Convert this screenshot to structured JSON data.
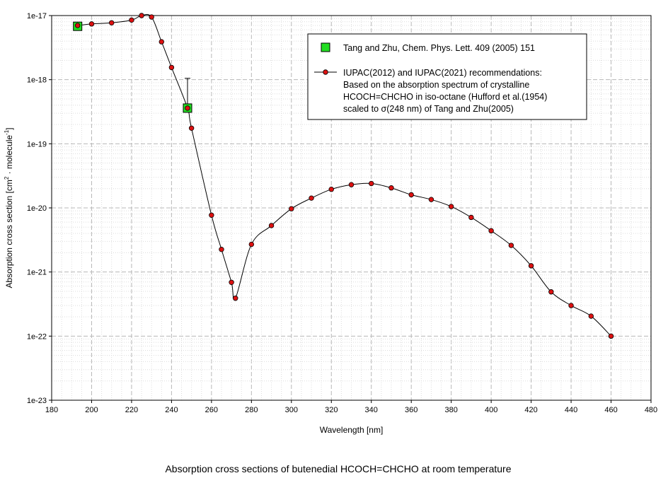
{
  "caption": "Absorption cross sections of butenedial HCOCH=CHCHO at room temperature",
  "chart_data": {
    "type": "scatter",
    "xlabel": "Wavelength [nm]",
    "ylabel": "Absorption cross section [cm² · molecule⁻¹]",
    "ylabel_parts": [
      "Absorption cross section [cm",
      "2",
      " · molecule",
      "-1",
      "]"
    ],
    "xlim": [
      180,
      480
    ],
    "ylim": [
      1e-23,
      1e-17
    ],
    "yscale": "log",
    "grid": true,
    "legend_position": "top-right",
    "x_ticks": [
      "180",
      "200",
      "220",
      "240",
      "260",
      "280",
      "300",
      "320",
      "340",
      "360",
      "380",
      "400",
      "420",
      "440",
      "460",
      "480"
    ],
    "y_ticks": [
      {
        "v": 1e-17,
        "label": "1e-17"
      },
      {
        "v": 1e-18,
        "label": "1e-18"
      },
      {
        "v": 1e-19,
        "label": "1e-19"
      },
      {
        "v": 1e-20,
        "label": "1e-20"
      },
      {
        "v": 1e-21,
        "label": "1e-21"
      },
      {
        "v": 1e-22,
        "label": "1e-22"
      },
      {
        "v": 1e-23,
        "label": "1e-23"
      }
    ],
    "series": [
      {
        "name": "Tang and Zhu, Chem. Phys. Lett. 409 (2005) 151",
        "marker": "square",
        "color": "#22dd22",
        "x": [
          193,
          248
        ],
        "y": [
          6.8e-18,
          3.6e-19
        ],
        "error_upper": [
          null,
          1.05e-18
        ]
      },
      {
        "name": "IUPAC(2012) and IUPAC(2021) recommendations:",
        "name_lines": [
          "IUPAC(2012) and IUPAC(2021) recommendations:",
          "Based on the absorption spectrum of crystalline",
          "HCOCH=CHCHO  in iso-octane (Hufford et al.(1954)",
          "scaled to σ(248 nm) of Tang and Zhu(2005)"
        ],
        "marker": "circle",
        "color": "#dd1111",
        "line_color": "#000000",
        "x": [
          193,
          200,
          210,
          220,
          225,
          230,
          235,
          240,
          248,
          250,
          260,
          265,
          270,
          272,
          280,
          290,
          300,
          310,
          320,
          330,
          340,
          350,
          360,
          370,
          380,
          390,
          400,
          410,
          420,
          430,
          440,
          450,
          460
        ],
        "y": [
          7e-18,
          7.4e-18,
          7.7e-18,
          8.5e-18,
          1e-17,
          9.5e-18,
          3.9e-18,
          1.55e-18,
          3.6e-19,
          1.75e-19,
          7.7e-21,
          2.25e-21,
          6.9e-22,
          3.9e-22,
          2.7e-21,
          5.3e-21,
          9.7e-21,
          1.42e-20,
          1.95e-20,
          2.3e-20,
          2.4e-20,
          2.05e-20,
          1.6e-20,
          1.35e-20,
          1.05e-20,
          7.1e-21,
          4.4e-21,
          2.6e-21,
          1.25e-21,
          4.9e-22,
          3e-22,
          2.05e-22,
          1e-22
        ]
      }
    ]
  }
}
